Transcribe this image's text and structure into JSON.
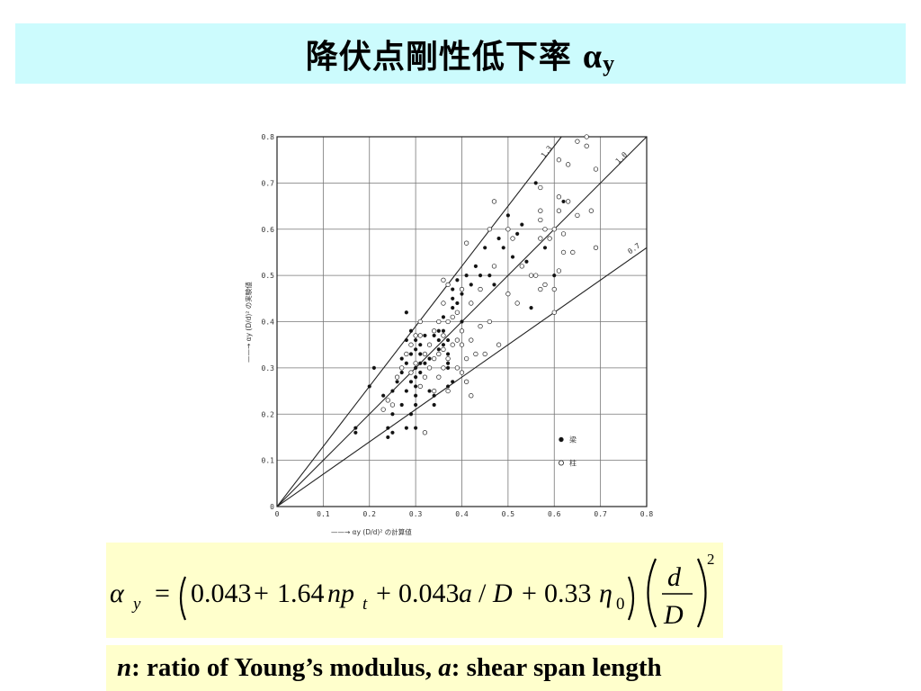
{
  "title": {
    "text": "降伏点剛性低下率",
    "greek": "α",
    "subscript": "y"
  },
  "chart_data": {
    "type": "scatter",
    "xlabel": "αy (D/d)² の計算値",
    "ylabel": "αy (D/d)² の実験値",
    "xlim": [
      0,
      0.8
    ],
    "ylim": [
      0,
      0.8
    ],
    "xticks": [
      "0",
      "0.1",
      "0.2",
      "0.3",
      "0.4",
      "0.5",
      "0.6",
      "0.7",
      "0.8"
    ],
    "yticks": [
      "0",
      "0.1",
      "0.2",
      "0.3",
      "0.4",
      "0.5",
      "0.6",
      "0.7",
      "0.8"
    ],
    "grid": true,
    "legend_position": "bottom-right",
    "reference_lines": [
      {
        "label": "1.3",
        "slope": 1.3
      },
      {
        "label": "1.0",
        "slope": 1.0
      },
      {
        "label": "0.7",
        "slope": 0.7
      }
    ],
    "series": [
      {
        "name": "梁",
        "marker": "filled-circle",
        "points": [
          [
            0.17,
            0.16
          ],
          [
            0.17,
            0.17
          ],
          [
            0.2,
            0.26
          ],
          [
            0.21,
            0.3
          ],
          [
            0.23,
            0.24
          ],
          [
            0.24,
            0.15
          ],
          [
            0.24,
            0.17
          ],
          [
            0.25,
            0.16
          ],
          [
            0.25,
            0.2
          ],
          [
            0.25,
            0.25
          ],
          [
            0.26,
            0.27
          ],
          [
            0.27,
            0.22
          ],
          [
            0.27,
            0.29
          ],
          [
            0.27,
            0.32
          ],
          [
            0.28,
            0.17
          ],
          [
            0.28,
            0.25
          ],
          [
            0.28,
            0.31
          ],
          [
            0.28,
            0.36
          ],
          [
            0.28,
            0.42
          ],
          [
            0.29,
            0.2
          ],
          [
            0.29,
            0.27
          ],
          [
            0.29,
            0.33
          ],
          [
            0.29,
            0.38
          ],
          [
            0.3,
            0.17
          ],
          [
            0.3,
            0.22
          ],
          [
            0.3,
            0.24
          ],
          [
            0.3,
            0.26
          ],
          [
            0.3,
            0.28
          ],
          [
            0.3,
            0.3
          ],
          [
            0.3,
            0.34
          ],
          [
            0.3,
            0.36
          ],
          [
            0.31,
            0.29
          ],
          [
            0.31,
            0.31
          ],
          [
            0.31,
            0.33
          ],
          [
            0.31,
            0.35
          ],
          [
            0.31,
            0.4
          ],
          [
            0.32,
            0.31
          ],
          [
            0.32,
            0.37
          ],
          [
            0.33,
            0.25
          ],
          [
            0.33,
            0.32
          ],
          [
            0.34,
            0.22
          ],
          [
            0.34,
            0.24
          ],
          [
            0.34,
            0.37
          ],
          [
            0.35,
            0.34
          ],
          [
            0.35,
            0.36
          ],
          [
            0.35,
            0.38
          ],
          [
            0.36,
            0.35
          ],
          [
            0.36,
            0.38
          ],
          [
            0.36,
            0.41
          ],
          [
            0.37,
            0.26
          ],
          [
            0.37,
            0.3
          ],
          [
            0.37,
            0.31
          ],
          [
            0.37,
            0.33
          ],
          [
            0.37,
            0.36
          ],
          [
            0.38,
            0.27
          ],
          [
            0.38,
            0.43
          ],
          [
            0.38,
            0.45
          ],
          [
            0.38,
            0.47
          ],
          [
            0.39,
            0.44
          ],
          [
            0.39,
            0.49
          ],
          [
            0.4,
            0.4
          ],
          [
            0.4,
            0.46
          ],
          [
            0.41,
            0.5
          ],
          [
            0.42,
            0.48
          ],
          [
            0.43,
            0.52
          ],
          [
            0.44,
            0.5
          ],
          [
            0.45,
            0.56
          ],
          [
            0.46,
            0.5
          ],
          [
            0.47,
            0.48
          ],
          [
            0.48,
            0.58
          ],
          [
            0.49,
            0.56
          ],
          [
            0.5,
            0.63
          ],
          [
            0.51,
            0.54
          ],
          [
            0.52,
            0.59
          ],
          [
            0.53,
            0.61
          ],
          [
            0.54,
            0.53
          ],
          [
            0.55,
            0.43
          ],
          [
            0.56,
            0.7
          ],
          [
            0.58,
            0.56
          ],
          [
            0.6,
            0.5
          ],
          [
            0.62,
            0.66
          ]
        ]
      },
      {
        "name": "柱",
        "marker": "open-circle",
        "points": [
          [
            0.23,
            0.21
          ],
          [
            0.24,
            0.23
          ],
          [
            0.25,
            0.22
          ],
          [
            0.26,
            0.28
          ],
          [
            0.27,
            0.3
          ],
          [
            0.28,
            0.33
          ],
          [
            0.29,
            0.35
          ],
          [
            0.29,
            0.29
          ],
          [
            0.3,
            0.31
          ],
          [
            0.3,
            0.37
          ],
          [
            0.31,
            0.26
          ],
          [
            0.31,
            0.37
          ],
          [
            0.31,
            0.4
          ],
          [
            0.32,
            0.16
          ],
          [
            0.32,
            0.28
          ],
          [
            0.32,
            0.33
          ],
          [
            0.33,
            0.3
          ],
          [
            0.33,
            0.35
          ],
          [
            0.34,
            0.25
          ],
          [
            0.34,
            0.32
          ],
          [
            0.34,
            0.38
          ],
          [
            0.35,
            0.28
          ],
          [
            0.35,
            0.33
          ],
          [
            0.35,
            0.4
          ],
          [
            0.36,
            0.3
          ],
          [
            0.36,
            0.34
          ],
          [
            0.36,
            0.37
          ],
          [
            0.36,
            0.44
          ],
          [
            0.36,
            0.49
          ],
          [
            0.37,
            0.25
          ],
          [
            0.37,
            0.32
          ],
          [
            0.37,
            0.4
          ],
          [
            0.37,
            0.48
          ],
          [
            0.38,
            0.35
          ],
          [
            0.38,
            0.41
          ],
          [
            0.39,
            0.3
          ],
          [
            0.39,
            0.36
          ],
          [
            0.39,
            0.42
          ],
          [
            0.4,
            0.29
          ],
          [
            0.4,
            0.35
          ],
          [
            0.4,
            0.38
          ],
          [
            0.4,
            0.47
          ],
          [
            0.41,
            0.27
          ],
          [
            0.41,
            0.32
          ],
          [
            0.41,
            0.57
          ],
          [
            0.42,
            0.24
          ],
          [
            0.42,
            0.36
          ],
          [
            0.42,
            0.44
          ],
          [
            0.43,
            0.33
          ],
          [
            0.44,
            0.39
          ],
          [
            0.44,
            0.47
          ],
          [
            0.45,
            0.33
          ],
          [
            0.46,
            0.4
          ],
          [
            0.46,
            0.6
          ],
          [
            0.47,
            0.52
          ],
          [
            0.47,
            0.66
          ],
          [
            0.48,
            0.35
          ],
          [
            0.5,
            0.46
          ],
          [
            0.5,
            0.6
          ],
          [
            0.51,
            0.58
          ],
          [
            0.52,
            0.44
          ],
          [
            0.53,
            0.52
          ],
          [
            0.55,
            0.5
          ],
          [
            0.56,
            0.5
          ],
          [
            0.57,
            0.47
          ],
          [
            0.57,
            0.58
          ],
          [
            0.57,
            0.62
          ],
          [
            0.57,
            0.64
          ],
          [
            0.57,
            0.69
          ],
          [
            0.58,
            0.6
          ],
          [
            0.58,
            0.48
          ],
          [
            0.59,
            0.58
          ],
          [
            0.6,
            0.42
          ],
          [
            0.6,
            0.47
          ],
          [
            0.6,
            0.6
          ],
          [
            0.61,
            0.51
          ],
          [
            0.61,
            0.64
          ],
          [
            0.61,
            0.67
          ],
          [
            0.61,
            0.75
          ],
          [
            0.62,
            0.55
          ],
          [
            0.62,
            0.59
          ],
          [
            0.63,
            0.66
          ],
          [
            0.63,
            0.74
          ],
          [
            0.64,
            0.55
          ],
          [
            0.65,
            0.63
          ],
          [
            0.65,
            0.79
          ],
          [
            0.67,
            0.78
          ],
          [
            0.67,
            0.8
          ],
          [
            0.68,
            0.64
          ],
          [
            0.69,
            0.56
          ],
          [
            0.69,
            0.73
          ]
        ]
      }
    ]
  },
  "formula": {
    "lhs_symbol": "α",
    "lhs_sub": "y",
    "equals": "=",
    "t1": "0.043",
    "plus1": "+",
    "t2": "1.64",
    "np": "np",
    "t_sub": "t",
    "plus2": "+",
    "t3": "0.043",
    "a": "a",
    "slash": "/",
    "D1": "D",
    "plus3": "+",
    "t4": "0.33",
    "eta": "η",
    "eta_sub": "0",
    "frac_num": "d",
    "frac_den": "D",
    "exponent": "2"
  },
  "note": {
    "n": "n",
    "n_desc": ": ratio of Young’s modulus, ",
    "a": "a",
    "a_desc": ": shear span length"
  }
}
